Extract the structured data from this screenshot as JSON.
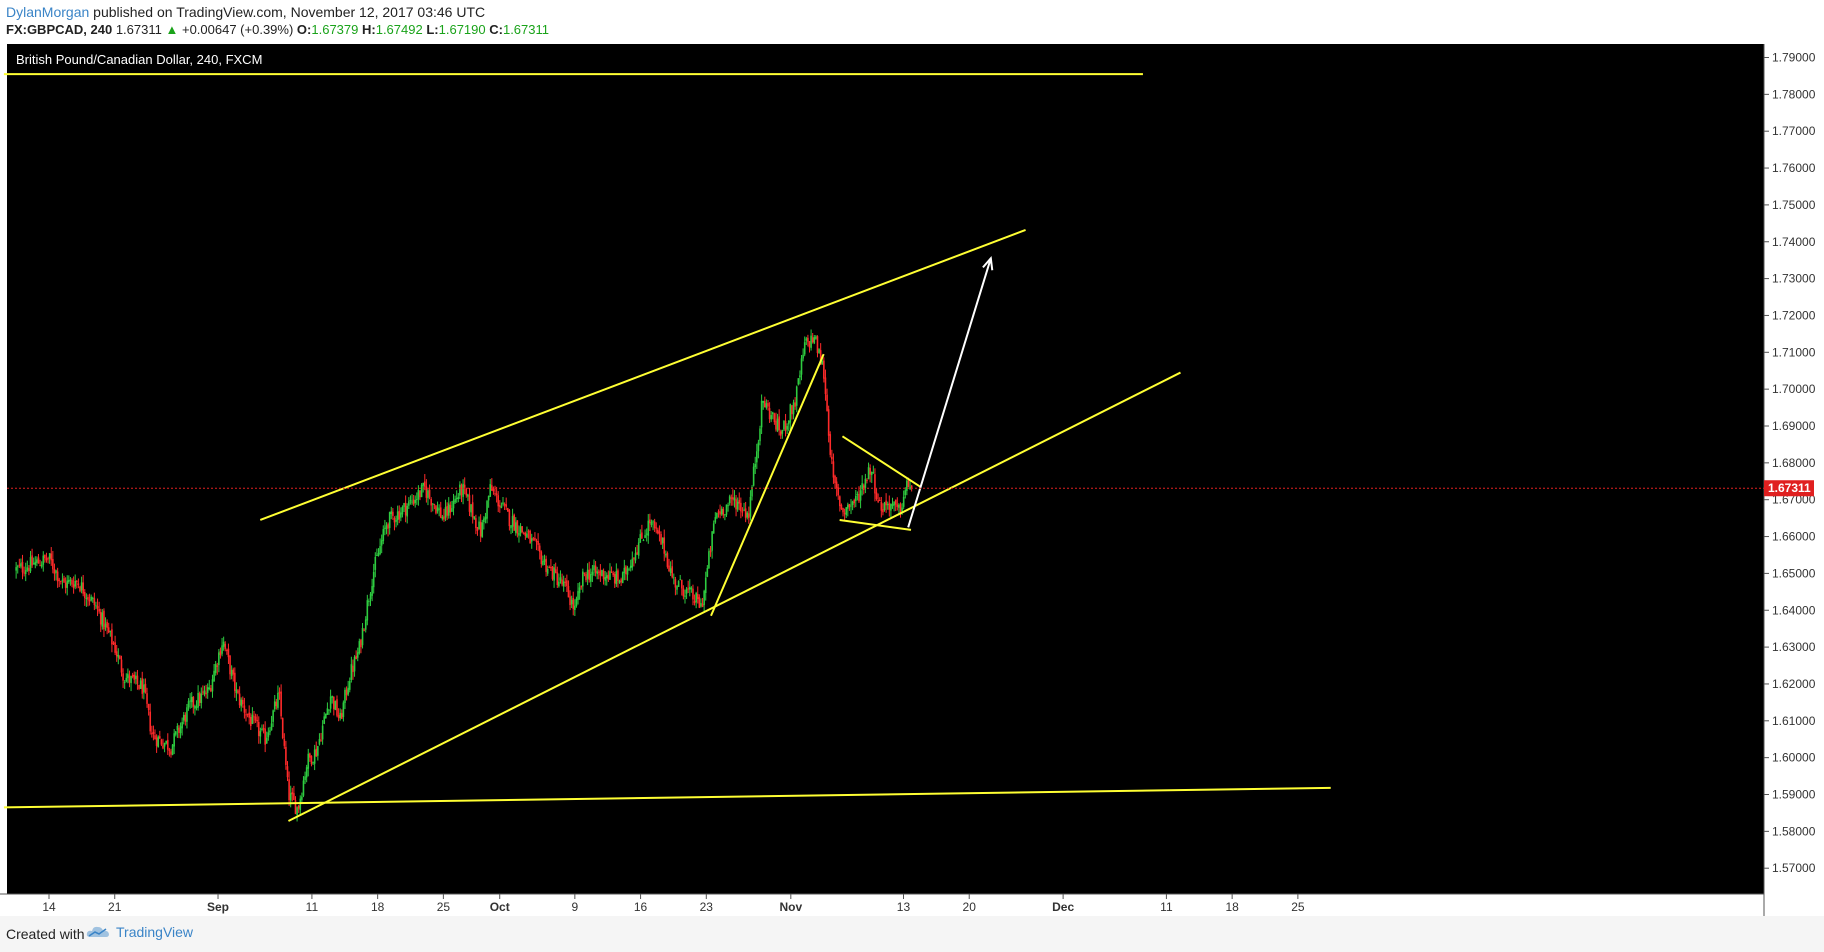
{
  "header": {
    "author": "DylanMorgan",
    "publish_text": "published on TradingView.com, November 12, 2017 03:46 UTC",
    "symbol": "FX:GBPCAD, 240",
    "last": "1.67311",
    "change": "+0.00647 (+0.39%)",
    "open_label": "O:",
    "open": "1.67379",
    "high_label": "H:",
    "high": "1.67492",
    "low_label": "L:",
    "low": "1.67190",
    "close_label": "C:",
    "close": "1.67311"
  },
  "chart_title": "British Pound/Canadian Dollar, 240, FXCM",
  "footer": {
    "created_with": "Created with",
    "brand": "TradingView"
  },
  "colors": {
    "background": "#000000",
    "up": "#2ecc40",
    "down": "#ff2a2a",
    "drawing": "#ffff33",
    "arrow": "#ffffff",
    "price_line": "#e02020",
    "price_badge": "#e02020"
  },
  "chart_data": {
    "type": "candlestick",
    "title": "British Pound/Canadian Dollar, 240, FXCM",
    "current_price": 1.67311,
    "current_price_label": "1.67311",
    "ylim": [
      1.565,
      1.795
    ],
    "y_ticks": [
      1.79,
      1.78,
      1.77,
      1.76,
      1.75,
      1.74,
      1.73,
      1.72,
      1.71,
      1.7,
      1.69,
      1.68,
      1.67,
      1.66,
      1.65,
      1.64,
      1.63,
      1.62,
      1.61,
      1.6,
      1.59,
      1.58,
      1.57
    ],
    "y_tick_labels": [
      "1.79000",
      "1.78000",
      "1.77000",
      "1.76000",
      "1.75000",
      "1.74000",
      "1.73000",
      "1.72000",
      "1.71000",
      "1.70000",
      "1.69000",
      "1.68000",
      "1.67000",
      "1.66000",
      "1.65000",
      "1.64000",
      "1.63000",
      "1.62000",
      "1.61000",
      "1.60000",
      "1.59000",
      "1.58000",
      "1.57000"
    ],
    "x_ticks": [
      {
        "label": "14",
        "day": 0
      },
      {
        "label": "21",
        "day": 7
      },
      {
        "label": "Sep",
        "day": 18
      },
      {
        "label": "11",
        "day": 28
      },
      {
        "label": "18",
        "day": 35
      },
      {
        "label": "25",
        "day": 42
      },
      {
        "label": "Oct",
        "day": 48
      },
      {
        "label": "9",
        "day": 56
      },
      {
        "label": "16",
        "day": 63
      },
      {
        "label": "23",
        "day": 70
      },
      {
        "label": "Nov",
        "day": 79
      },
      {
        "label": "13",
        "day": 91
      },
      {
        "label": "20",
        "day": 98
      },
      {
        "label": "Dec",
        "day": 108
      },
      {
        "label": "11",
        "day": 119
      },
      {
        "label": "18",
        "day": 126
      },
      {
        "label": "25",
        "day": 133
      }
    ],
    "path": [
      [
        -3.5,
        1.651
      ],
      [
        0,
        1.654
      ],
      [
        1.5,
        1.647
      ],
      [
        3,
        1.648
      ],
      [
        5,
        1.641
      ],
      [
        7,
        1.63
      ],
      [
        8,
        1.622
      ],
      [
        10,
        1.619
      ],
      [
        11,
        1.606
      ],
      [
        13,
        1.603
      ],
      [
        15,
        1.614
      ],
      [
        17,
        1.618
      ],
      [
        18.5,
        1.632
      ],
      [
        20,
        1.617
      ],
      [
        21.5,
        1.61
      ],
      [
        23,
        1.605
      ],
      [
        24.5,
        1.617
      ],
      [
        25.5,
        1.59
      ],
      [
        26.5,
        1.586
      ],
      [
        27.5,
        1.599
      ],
      [
        28.5,
        1.602
      ],
      [
        30,
        1.617
      ],
      [
        31,
        1.61
      ],
      [
        32,
        1.622
      ],
      [
        33,
        1.629
      ],
      [
        34.5,
        1.65
      ],
      [
        36,
        1.664
      ],
      [
        38,
        1.668
      ],
      [
        40,
        1.673
      ],
      [
        42,
        1.665
      ],
      [
        44,
        1.673
      ],
      [
        46,
        1.661
      ],
      [
        47,
        1.673
      ],
      [
        49,
        1.665
      ],
      [
        51,
        1.66
      ],
      [
        53,
        1.652
      ],
      [
        55,
        1.646
      ],
      [
        56,
        1.64
      ],
      [
        57,
        1.65
      ],
      [
        59,
        1.65
      ],
      [
        61,
        1.648
      ],
      [
        62,
        1.654
      ],
      [
        64,
        1.664
      ],
      [
        65.5,
        1.657
      ],
      [
        66.5,
        1.648
      ],
      [
        68,
        1.645
      ],
      [
        69.5,
        1.641
      ],
      [
        71,
        1.666
      ],
      [
        73,
        1.67
      ],
      [
        74.5,
        1.666
      ],
      [
        76,
        1.697
      ],
      [
        78,
        1.688
      ],
      [
        79.5,
        1.697
      ],
      [
        80.5,
        1.712
      ],
      [
        81.5,
        1.714
      ],
      [
        82.5,
        1.705
      ],
      [
        83.5,
        1.675
      ],
      [
        84.5,
        1.667
      ],
      [
        86,
        1.67
      ],
      [
        87.5,
        1.679
      ],
      [
        88.5,
        1.668
      ],
      [
        89.5,
        1.669
      ],
      [
        90.5,
        1.6665
      ],
      [
        91.5,
        1.6745
      ],
      [
        92,
        1.6731
      ]
    ],
    "drawings": {
      "horizontal_resistance": [
        [
          -4.8,
          1.7855
        ],
        [
          116.5,
          1.7855
        ]
      ],
      "long_support": [
        [
          -4.8,
          1.5865
        ],
        [
          136.5,
          1.5918
        ]
      ],
      "channel_upper": [
        [
          22.5,
          1.6645
        ],
        [
          104,
          1.7432
        ]
      ],
      "channel_lower": [
        [
          25.5,
          1.5828
        ],
        [
          120.5,
          1.7045
        ]
      ],
      "rally_line": [
        [
          70.5,
          1.6385
        ],
        [
          82.5,
          1.7095
        ]
      ],
      "triangle_top": [
        [
          84.5,
          1.6872
        ],
        [
          92.8,
          1.6735
        ]
      ],
      "triangle_bottom": [
        [
          84.2,
          1.6645
        ],
        [
          91.8,
          1.6618
        ]
      ],
      "projection_arrow": [
        [
          91.5,
          1.6625
        ],
        [
          100.3,
          1.7355
        ]
      ]
    }
  }
}
